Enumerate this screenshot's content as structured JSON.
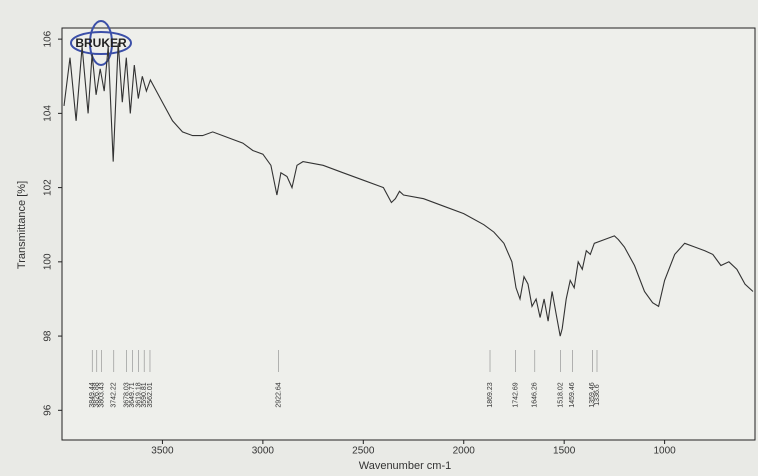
{
  "chart_data": {
    "type": "line",
    "logo": "BRUKER",
    "x_label": "Wavenumber cm-1",
    "y_label": "Transmittance [%]",
    "xlim": [
      4000,
      550
    ],
    "ylim": [
      95.2,
      106.3
    ],
    "xticks": [
      3500,
      3000,
      2500,
      2000,
      1500,
      1000
    ],
    "yticks": [
      96,
      98,
      100,
      102,
      104,
      106
    ],
    "peaks": [
      3849.44,
      3826.88,
      3803.43,
      3742.22,
      3678.03,
      3649.71,
      3619.18,
      3590.81,
      3562.01,
      2922.64,
      1869.23,
      1742.69,
      1646.26,
      1518.02,
      1459.46,
      1359.46,
      1336.6
    ],
    "series": [
      {
        "color": "#333333",
        "x": [
          3990,
          3960,
          3930,
          3900,
          3870,
          3850,
          3830,
          3810,
          3790,
          3770,
          3745,
          3720,
          3700,
          3680,
          3660,
          3640,
          3620,
          3600,
          3580,
          3560,
          3530,
          3500,
          3450,
          3400,
          3350,
          3300,
          3250,
          3200,
          3150,
          3100,
          3050,
          3000,
          2960,
          2930,
          2910,
          2880,
          2855,
          2830,
          2800,
          2700,
          2600,
          2500,
          2400,
          2360,
          2340,
          2320,
          2300,
          2200,
          2100,
          2000,
          1900,
          1850,
          1800,
          1760,
          1740,
          1720,
          1700,
          1680,
          1660,
          1640,
          1620,
          1600,
          1580,
          1560,
          1540,
          1520,
          1510,
          1490,
          1470,
          1450,
          1430,
          1410,
          1390,
          1370,
          1350,
          1300,
          1250,
          1230,
          1200,
          1150,
          1100,
          1060,
          1030,
          1000,
          950,
          900,
          850,
          800,
          760,
          720,
          680,
          640,
          600,
          560
        ],
        "values": [
          104.2,
          105.5,
          103.8,
          105.8,
          104.0,
          105.6,
          104.5,
          105.2,
          104.6,
          105.8,
          102.7,
          105.9,
          104.3,
          105.5,
          104.0,
          105.3,
          104.4,
          105.0,
          104.6,
          104.9,
          104.6,
          104.3,
          103.8,
          103.5,
          103.4,
          103.4,
          103.5,
          103.4,
          103.3,
          103.2,
          103.0,
          102.9,
          102.6,
          101.8,
          102.4,
          102.3,
          102.0,
          102.6,
          102.7,
          102.6,
          102.4,
          102.2,
          102.0,
          101.6,
          101.7,
          101.9,
          101.8,
          101.7,
          101.5,
          101.3,
          101.0,
          100.8,
          100.5,
          100.0,
          99.3,
          99.0,
          99.6,
          99.4,
          98.8,
          99.0,
          98.5,
          99.0,
          98.4,
          99.2,
          98.6,
          98.0,
          98.2,
          99.0,
          99.5,
          99.3,
          100.0,
          99.8,
          100.3,
          100.2,
          100.5,
          100.6,
          100.7,
          100.6,
          100.4,
          99.9,
          99.2,
          98.9,
          98.8,
          99.5,
          100.2,
          100.5,
          100.4,
          100.3,
          100.2,
          99.9,
          100.0,
          99.8,
          99.4,
          99.2
        ]
      }
    ]
  }
}
